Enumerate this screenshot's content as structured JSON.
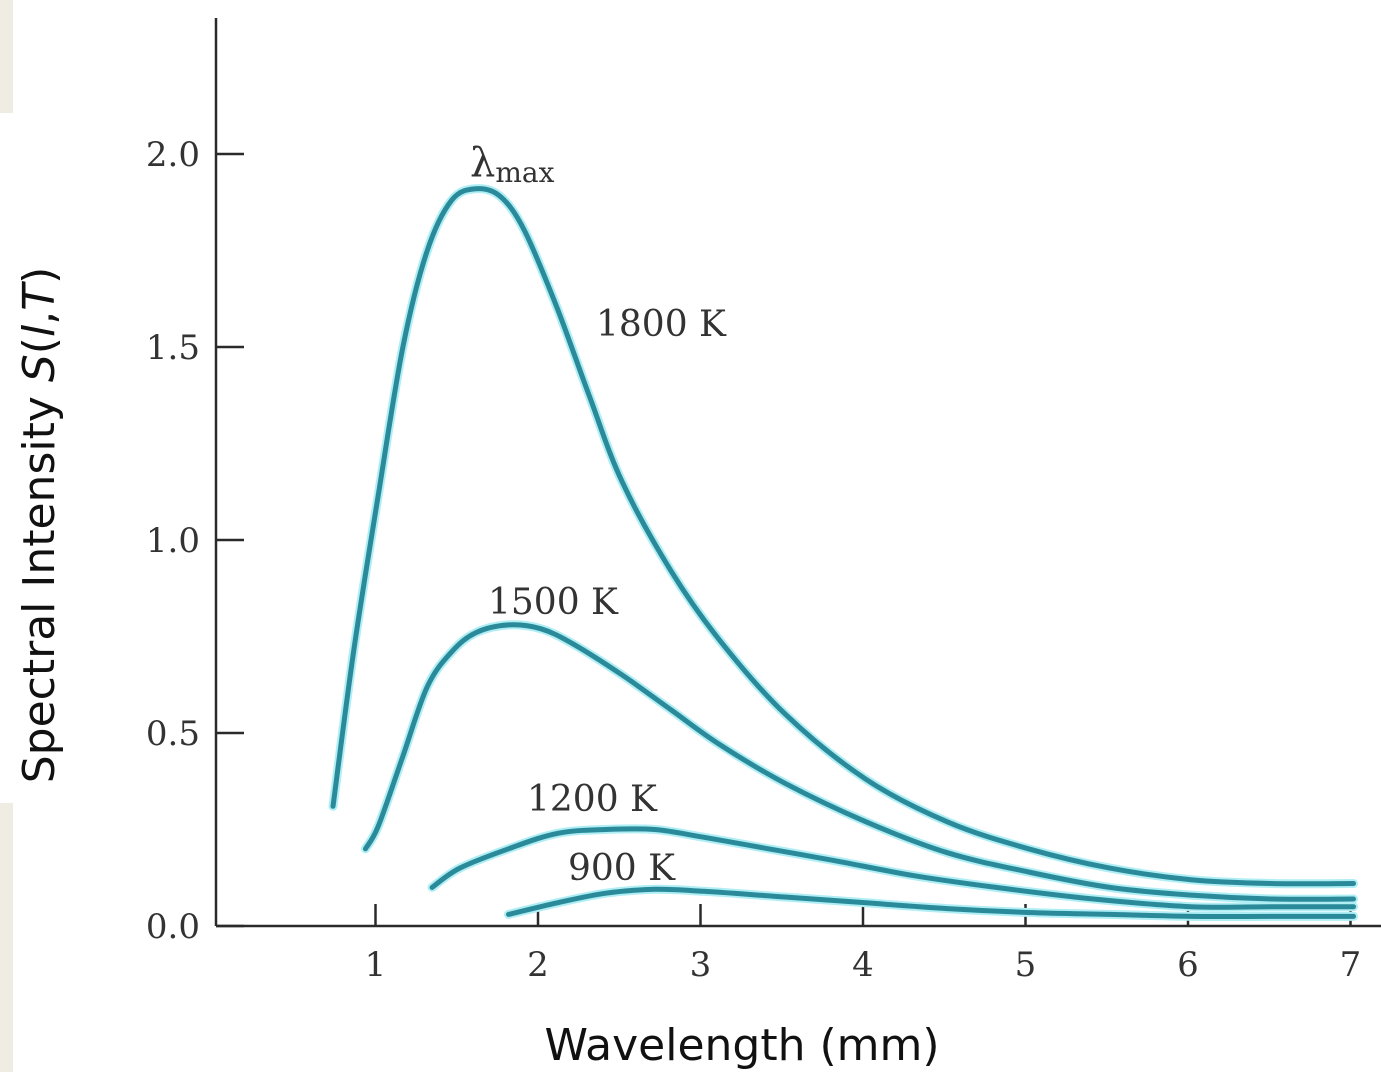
{
  "chart_data": {
    "type": "line",
    "xlabel": "Wavelength (mm)",
    "ylabel": "Spectral Intensity S(l,T)",
    "ylabel_parts": {
      "prefix": "Spectral Intensity ",
      "s": "S",
      "open": "(",
      "l": "l",
      "comma": ",",
      "t": "T",
      "close": ")"
    },
    "xlim": [
      0,
      7
    ],
    "ylim": [
      0,
      2.0
    ],
    "xticks": [
      1,
      2,
      3,
      4,
      5,
      6,
      7
    ],
    "xtick_labels": [
      "1",
      "2",
      "3",
      "4",
      "5",
      "6",
      "7"
    ],
    "yticks": [
      0,
      0.5,
      1.0,
      1.5,
      2.0
    ],
    "ytick_labels": [
      "0.0",
      "0.5",
      "1.0",
      "1.5",
      "2.0"
    ],
    "grid": false,
    "line_color": "#2a8a9a",
    "glow_color": "#aeeef4",
    "annotation": {
      "main": "λ",
      "sub": "max"
    },
    "series": [
      {
        "name": "1800 K",
        "x": [
          0.72,
          0.85,
          1.0,
          1.15,
          1.3,
          1.45,
          1.6,
          1.75,
          1.9,
          2.1,
          2.3,
          2.5,
          2.8,
          3.1,
          3.5,
          4.0,
          4.5,
          5.0,
          5.5,
          6.0,
          6.5,
          7.0
        ],
        "y": [
          0.31,
          0.72,
          1.12,
          1.5,
          1.75,
          1.88,
          1.91,
          1.89,
          1.8,
          1.6,
          1.37,
          1.15,
          0.92,
          0.74,
          0.55,
          0.38,
          0.27,
          0.2,
          0.15,
          0.12,
          0.11,
          0.11
        ]
      },
      {
        "name": "1500 K",
        "x": [
          0.92,
          1.0,
          1.15,
          1.3,
          1.45,
          1.6,
          1.8,
          2.0,
          2.2,
          2.5,
          2.8,
          3.1,
          3.5,
          4.0,
          4.5,
          5.0,
          5.5,
          6.0,
          6.5,
          7.0
        ],
        "y": [
          0.2,
          0.26,
          0.44,
          0.62,
          0.71,
          0.76,
          0.78,
          0.77,
          0.73,
          0.65,
          0.56,
          0.47,
          0.37,
          0.27,
          0.19,
          0.14,
          0.1,
          0.08,
          0.07,
          0.07
        ]
      },
      {
        "name": "1200 K",
        "x": [
          1.33,
          1.5,
          1.8,
          2.1,
          2.4,
          2.7,
          3.0,
          3.4,
          3.8,
          4.3,
          4.8,
          5.4,
          6.0,
          6.5,
          7.0
        ],
        "y": [
          0.1,
          0.15,
          0.2,
          0.24,
          0.25,
          0.25,
          0.23,
          0.2,
          0.17,
          0.13,
          0.1,
          0.07,
          0.05,
          0.05,
          0.05
        ]
      },
      {
        "name": "900 K",
        "x": [
          1.8,
          2.1,
          2.4,
          2.7,
          3.0,
          3.5,
          4.0,
          4.5,
          5.0,
          5.5,
          6.0,
          6.5,
          7.0
        ],
        "y": [
          0.03,
          0.06,
          0.085,
          0.095,
          0.09,
          0.075,
          0.06,
          0.045,
          0.035,
          0.03,
          0.025,
          0.025,
          0.025
        ]
      }
    ],
    "labels": [
      {
        "series": "1800 K",
        "text": "1800 K"
      },
      {
        "series": "1500 K",
        "text": "1500 K"
      },
      {
        "series": "1200 K",
        "text": "1200 K"
      },
      {
        "series": "900 K",
        "text": "900 K"
      }
    ]
  }
}
